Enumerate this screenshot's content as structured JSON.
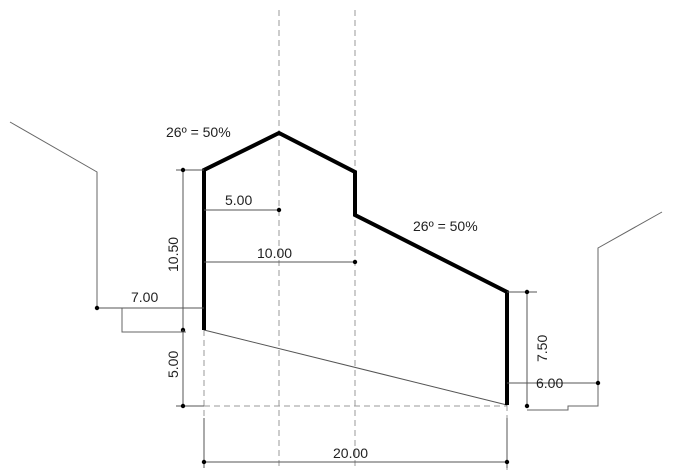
{
  "dimensions": {
    "roof_left_slope": "26º = 50%",
    "roof_right_slope": "26º = 50%",
    "half_width": "5.00",
    "ridge_offset": "10.00",
    "left_wall_height": "10.50",
    "left_setback": "7.00",
    "left_base_height": "5.00",
    "total_width": "20.00",
    "right_wall_height": "7.50",
    "right_setback": "6.00"
  },
  "colors": {
    "outline": "#000000",
    "dimension": "#555555",
    "axis": "#999999"
  }
}
